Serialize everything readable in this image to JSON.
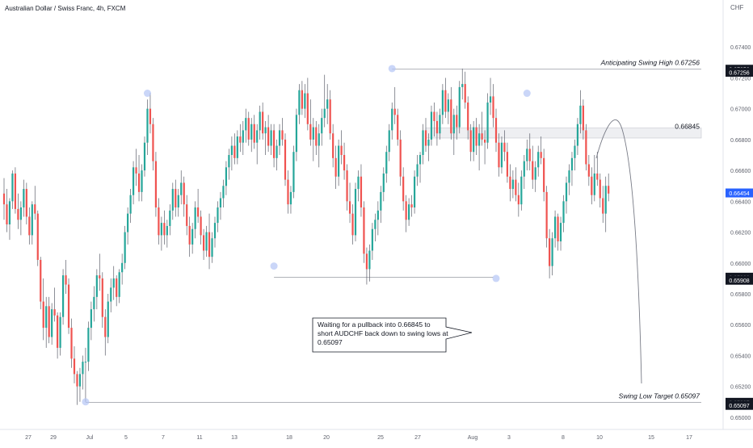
{
  "header": {
    "title": "Australian Dollar / Swiss Franc, 4h, FXCM"
  },
  "chart_data": {
    "type": "candlestick",
    "title": "Australian Dollar / Swiss Franc, 4h, FXCM",
    "currency_label": "CHF",
    "ylim": [
      0.6501,
      0.676
    ],
    "y_ticks": [
      "0.67400",
      "0.67200",
      "0.67000",
      "0.66800",
      "0.66600",
      "0.66400",
      "0.66200",
      "0.66000",
      "0.65800",
      "0.65600",
      "0.65400",
      "0.65200",
      "0.65000"
    ],
    "x_ticks": [
      "27",
      "29",
      "Jul",
      "5",
      "7",
      "11",
      "13",
      "18",
      "20",
      "25",
      "27",
      "Aug",
      "3",
      "8",
      "10",
      "15",
      "17"
    ],
    "price_badges": [
      {
        "label": "0.67256",
        "value": 0.67256,
        "color": "#131722"
      },
      {
        "label": "0.67256",
        "value": 0.67236,
        "color": "#131722"
      },
      {
        "label": "0.66454",
        "value": 0.66454,
        "color": "#2962ff"
      },
      {
        "label": "0.65908",
        "value": 0.65908,
        "color": "#131722"
      },
      {
        "label": "0.65908",
        "value": 0.65888,
        "color": "#131722"
      },
      {
        "label": "0.65097",
        "value": 0.65097,
        "color": "#131722"
      },
      {
        "label": "0.65097",
        "value": 0.65077,
        "color": "#131722"
      }
    ],
    "colors": {
      "up": "#26a69a",
      "down": "#ef5350",
      "wick": "#5d606b",
      "swing": "#b3c5f5"
    },
    "candles": [
      [
        0.6645,
        0.6655,
        0.6628,
        0.6638
      ],
      [
        0.6638,
        0.6648,
        0.662,
        0.6625
      ],
      [
        0.6625,
        0.6642,
        0.6615,
        0.664
      ],
      [
        0.664,
        0.666,
        0.6635,
        0.6658
      ],
      [
        0.6658,
        0.6662,
        0.6632,
        0.6635
      ],
      [
        0.6635,
        0.6645,
        0.6622,
        0.6628
      ],
      [
        0.6628,
        0.664,
        0.6618,
        0.6636
      ],
      [
        0.6636,
        0.6654,
        0.663,
        0.6648
      ],
      [
        0.6648,
        0.6652,
        0.6625,
        0.663
      ],
      [
        0.663,
        0.6636,
        0.6612,
        0.6618
      ],
      [
        0.6618,
        0.664,
        0.6612,
        0.6638
      ],
      [
        0.6638,
        0.665,
        0.6628,
        0.6632
      ],
      [
        0.6632,
        0.6634,
        0.6598,
        0.6602
      ],
      [
        0.6602,
        0.6604,
        0.657,
        0.6575
      ],
      [
        0.6575,
        0.659,
        0.655,
        0.6558
      ],
      [
        0.6558,
        0.6578,
        0.6545,
        0.6572
      ],
      [
        0.6572,
        0.6578,
        0.6548,
        0.6552
      ],
      [
        0.6552,
        0.6574,
        0.6547,
        0.657
      ],
      [
        0.657,
        0.6584,
        0.6562,
        0.6566
      ],
      [
        0.6566,
        0.6568,
        0.6538,
        0.6545
      ],
      [
        0.6545,
        0.6568,
        0.654,
        0.6565
      ],
      [
        0.6565,
        0.6596,
        0.656,
        0.6592
      ],
      [
        0.6592,
        0.6602,
        0.658,
        0.6586
      ],
      [
        0.6586,
        0.659,
        0.6554,
        0.6558
      ],
      [
        0.6558,
        0.6564,
        0.6532,
        0.6538
      ],
      [
        0.6538,
        0.6546,
        0.6522,
        0.6528
      ],
      [
        0.6528,
        0.653,
        0.6508,
        0.652
      ],
      [
        0.652,
        0.6532,
        0.651,
        0.6528
      ],
      [
        0.6528,
        0.654,
        0.6518,
        0.6536
      ],
      [
        0.6536,
        0.6545,
        0.651,
        0.6536
      ],
      [
        0.6536,
        0.6562,
        0.653,
        0.6558
      ],
      [
        0.6558,
        0.6575,
        0.655,
        0.657
      ],
      [
        0.657,
        0.6585,
        0.6562,
        0.6578
      ],
      [
        0.6578,
        0.6596,
        0.657,
        0.6592
      ],
      [
        0.6592,
        0.6606,
        0.6582,
        0.659
      ],
      [
        0.659,
        0.6594,
        0.6558,
        0.6565
      ],
      [
        0.6565,
        0.657,
        0.654,
        0.6552
      ],
      [
        0.6552,
        0.658,
        0.6548,
        0.6575
      ],
      [
        0.6575,
        0.659,
        0.6568,
        0.6584
      ],
      [
        0.6584,
        0.6598,
        0.6576,
        0.659
      ],
      [
        0.659,
        0.6592,
        0.6572,
        0.6578
      ],
      [
        0.6578,
        0.6596,
        0.6574,
        0.6594
      ],
      [
        0.6594,
        0.6606,
        0.6586,
        0.66
      ],
      [
        0.66,
        0.6624,
        0.6596,
        0.662
      ],
      [
        0.662,
        0.6636,
        0.6612,
        0.6632
      ],
      [
        0.6632,
        0.6648,
        0.6626,
        0.6644
      ],
      [
        0.6644,
        0.6666,
        0.6638,
        0.6662
      ],
      [
        0.6662,
        0.6674,
        0.665,
        0.6658
      ],
      [
        0.6658,
        0.667,
        0.664,
        0.6646
      ],
      [
        0.6646,
        0.6664,
        0.664,
        0.666
      ],
      [
        0.666,
        0.6682,
        0.6656,
        0.6678
      ],
      [
        0.6678,
        0.6706,
        0.667,
        0.67
      ],
      [
        0.67,
        0.671,
        0.6684,
        0.669
      ],
      [
        0.669,
        0.6694,
        0.666,
        0.6666
      ],
      [
        0.6666,
        0.6672,
        0.663,
        0.6636
      ],
      [
        0.6636,
        0.6642,
        0.6612,
        0.6618
      ],
      [
        0.6618,
        0.663,
        0.6608,
        0.6626
      ],
      [
        0.6626,
        0.6634,
        0.6612,
        0.6618
      ],
      [
        0.6618,
        0.6628,
        0.661,
        0.6624
      ],
      [
        0.6624,
        0.6638,
        0.6618,
        0.6634
      ],
      [
        0.6634,
        0.6652,
        0.6628,
        0.6648
      ],
      [
        0.6648,
        0.6654,
        0.663,
        0.6636
      ],
      [
        0.6636,
        0.6648,
        0.663,
        0.6644
      ],
      [
        0.6644,
        0.666,
        0.6638,
        0.6652
      ],
      [
        0.6652,
        0.6656,
        0.663,
        0.6638
      ],
      [
        0.6638,
        0.6644,
        0.6618,
        0.6624
      ],
      [
        0.6624,
        0.663,
        0.6604,
        0.6612
      ],
      [
        0.6612,
        0.6626,
        0.6606,
        0.6622
      ],
      [
        0.6622,
        0.664,
        0.6616,
        0.6636
      ],
      [
        0.6636,
        0.6648,
        0.6626,
        0.663
      ],
      [
        0.663,
        0.6634,
        0.6612,
        0.6618
      ],
      [
        0.6618,
        0.6622,
        0.6602,
        0.6608
      ],
      [
        0.6608,
        0.6624,
        0.6604,
        0.662
      ],
      [
        0.662,
        0.6632,
        0.6596,
        0.6604
      ],
      [
        0.6604,
        0.662,
        0.66,
        0.6616
      ],
      [
        0.6616,
        0.663,
        0.661,
        0.6626
      ],
      [
        0.6626,
        0.664,
        0.662,
        0.6636
      ],
      [
        0.6636,
        0.6646,
        0.6628,
        0.6642
      ],
      [
        0.6642,
        0.6654,
        0.6636,
        0.665
      ],
      [
        0.665,
        0.6666,
        0.6644,
        0.6662
      ],
      [
        0.6662,
        0.6674,
        0.6654,
        0.667
      ],
      [
        0.667,
        0.6682,
        0.666,
        0.6676
      ],
      [
        0.6676,
        0.6684,
        0.6664,
        0.6668
      ],
      [
        0.6668,
        0.6686,
        0.6664,
        0.6682
      ],
      [
        0.6682,
        0.669,
        0.6672,
        0.6678
      ],
      [
        0.6678,
        0.6692,
        0.667,
        0.6686
      ],
      [
        0.6686,
        0.67,
        0.6678,
        0.6694
      ],
      [
        0.6694,
        0.6698,
        0.6676,
        0.668
      ],
      [
        0.668,
        0.6694,
        0.6672,
        0.669
      ],
      [
        0.669,
        0.6696,
        0.6674,
        0.6678
      ],
      [
        0.6678,
        0.669,
        0.6664,
        0.6686
      ],
      [
        0.6686,
        0.6702,
        0.668,
        0.6698
      ],
      [
        0.6698,
        0.6704,
        0.668,
        0.6684
      ],
      [
        0.6684,
        0.6692,
        0.667,
        0.6688
      ],
      [
        0.6688,
        0.6696,
        0.6672,
        0.6676
      ],
      [
        0.6676,
        0.669,
        0.667,
        0.6686
      ],
      [
        0.6686,
        0.669,
        0.6662,
        0.6668
      ],
      [
        0.6668,
        0.668,
        0.666,
        0.6676
      ],
      [
        0.6676,
        0.669,
        0.667,
        0.6686
      ],
      [
        0.6686,
        0.6694,
        0.6676,
        0.668
      ],
      [
        0.668,
        0.6684,
        0.665,
        0.6654
      ],
      [
        0.6654,
        0.666,
        0.6632,
        0.6638
      ],
      [
        0.6638,
        0.665,
        0.6632,
        0.6646
      ],
      [
        0.6646,
        0.6676,
        0.6642,
        0.6672
      ],
      [
        0.6672,
        0.67,
        0.6666,
        0.6696
      ],
      [
        0.6696,
        0.6716,
        0.669,
        0.6712
      ],
      [
        0.6712,
        0.6718,
        0.6696,
        0.67
      ],
      [
        0.67,
        0.6716,
        0.6694,
        0.671
      ],
      [
        0.671,
        0.672,
        0.6686,
        0.669
      ],
      [
        0.669,
        0.6706,
        0.6676,
        0.668
      ],
      [
        0.668,
        0.6694,
        0.6666,
        0.6688
      ],
      [
        0.6688,
        0.6692,
        0.667,
        0.6676
      ],
      [
        0.6676,
        0.669,
        0.6662,
        0.6684
      ],
      [
        0.6684,
        0.67,
        0.6676,
        0.6694
      ],
      [
        0.6694,
        0.6722,
        0.6688,
        0.67
      ],
      [
        0.67,
        0.6716,
        0.669,
        0.6706
      ],
      [
        0.6706,
        0.6712,
        0.668,
        0.6684
      ],
      [
        0.6684,
        0.669,
        0.6662,
        0.6668
      ],
      [
        0.6668,
        0.6676,
        0.6648,
        0.6656
      ],
      [
        0.6656,
        0.668,
        0.665,
        0.6676
      ],
      [
        0.6676,
        0.6686,
        0.6664,
        0.667
      ],
      [
        0.667,
        0.6678,
        0.6654,
        0.666
      ],
      [
        0.666,
        0.6664,
        0.6634,
        0.664
      ],
      [
        0.664,
        0.6652,
        0.6626,
        0.6632
      ],
      [
        0.6632,
        0.6638,
        0.6612,
        0.6618
      ],
      [
        0.6618,
        0.6652,
        0.6614,
        0.6648
      ],
      [
        0.6648,
        0.666,
        0.664,
        0.6656
      ],
      [
        0.6656,
        0.6664,
        0.663,
        0.6636
      ],
      [
        0.6636,
        0.664,
        0.66,
        0.6606
      ],
      [
        0.6606,
        0.661,
        0.6586,
        0.6596
      ],
      [
        0.6596,
        0.6612,
        0.6588,
        0.6608
      ],
      [
        0.6608,
        0.6626,
        0.6602,
        0.6622
      ],
      [
        0.6622,
        0.6632,
        0.6614,
        0.6628
      ],
      [
        0.6628,
        0.664,
        0.6618,
        0.6634
      ],
      [
        0.6634,
        0.665,
        0.6626,
        0.6646
      ],
      [
        0.6646,
        0.6662,
        0.664,
        0.6658
      ],
      [
        0.6658,
        0.6676,
        0.6652,
        0.6672
      ],
      [
        0.6672,
        0.669,
        0.6666,
        0.6686
      ],
      [
        0.6686,
        0.6704,
        0.668,
        0.67
      ],
      [
        0.67,
        0.6714,
        0.669,
        0.6696
      ],
      [
        0.6696,
        0.67,
        0.6676,
        0.668
      ],
      [
        0.668,
        0.6686,
        0.665,
        0.6656
      ],
      [
        0.6656,
        0.6662,
        0.6634,
        0.664
      ],
      [
        0.664,
        0.6644,
        0.662,
        0.6628
      ],
      [
        0.6628,
        0.6642,
        0.6624,
        0.6638
      ],
      [
        0.6638,
        0.6644,
        0.663,
        0.6636
      ],
      [
        0.6636,
        0.666,
        0.6632,
        0.6656
      ],
      [
        0.6656,
        0.667,
        0.665,
        0.6664
      ],
      [
        0.6664,
        0.6672,
        0.6652,
        0.667
      ],
      [
        0.667,
        0.669,
        0.6664,
        0.6686
      ],
      [
        0.6686,
        0.6694,
        0.6672,
        0.6676
      ],
      [
        0.6676,
        0.6684,
        0.6666,
        0.668
      ],
      [
        0.668,
        0.6702,
        0.6676,
        0.6698
      ],
      [
        0.6698,
        0.6704,
        0.6682,
        0.6692
      ],
      [
        0.6692,
        0.6698,
        0.6676,
        0.6684
      ],
      [
        0.6684,
        0.67,
        0.668,
        0.6696
      ],
      [
        0.6696,
        0.6716,
        0.669,
        0.6712
      ],
      [
        0.6712,
        0.672,
        0.6694,
        0.6698
      ],
      [
        0.6698,
        0.671,
        0.669,
        0.6706
      ],
      [
        0.6706,
        0.6714,
        0.668,
        0.6684
      ],
      [
        0.6684,
        0.67,
        0.667,
        0.6696
      ],
      [
        0.6696,
        0.6702,
        0.668,
        0.6688
      ],
      [
        0.6688,
        0.6718,
        0.6684,
        0.6714
      ],
      [
        0.6714,
        0.6726,
        0.6706,
        0.6716
      ],
      [
        0.6716,
        0.6724,
        0.67,
        0.6704
      ],
      [
        0.6704,
        0.6708,
        0.668,
        0.6686
      ],
      [
        0.6686,
        0.669,
        0.6666,
        0.6672
      ],
      [
        0.6672,
        0.6692,
        0.6666,
        0.6688
      ],
      [
        0.6688,
        0.6694,
        0.667,
        0.6676
      ],
      [
        0.6676,
        0.669,
        0.666,
        0.6684
      ],
      [
        0.6684,
        0.6698,
        0.6676,
        0.668
      ],
      [
        0.668,
        0.6686,
        0.6664,
        0.6678
      ],
      [
        0.6678,
        0.671,
        0.6674,
        0.6704
      ],
      [
        0.6704,
        0.672,
        0.6696,
        0.6708
      ],
      [
        0.6708,
        0.6716,
        0.6688,
        0.6694
      ],
      [
        0.6694,
        0.67,
        0.6672,
        0.6678
      ],
      [
        0.6678,
        0.6684,
        0.6656,
        0.6662
      ],
      [
        0.6662,
        0.6682,
        0.6658,
        0.6678
      ],
      [
        0.6678,
        0.6686,
        0.6666,
        0.6672
      ],
      [
        0.6672,
        0.6678,
        0.6652,
        0.6656
      ],
      [
        0.6656,
        0.6664,
        0.664,
        0.6648
      ],
      [
        0.6648,
        0.666,
        0.6642,
        0.6654
      ],
      [
        0.6654,
        0.6662,
        0.664,
        0.6644
      ],
      [
        0.6644,
        0.6652,
        0.663,
        0.6638
      ],
      [
        0.6638,
        0.666,
        0.6634,
        0.6656
      ],
      [
        0.6656,
        0.667,
        0.6648,
        0.6666
      ],
      [
        0.6666,
        0.668,
        0.666,
        0.6674
      ],
      [
        0.6674,
        0.6684,
        0.666,
        0.6666
      ],
      [
        0.6666,
        0.6676,
        0.6648,
        0.6654
      ],
      [
        0.6654,
        0.6666,
        0.6646,
        0.6662
      ],
      [
        0.6662,
        0.6676,
        0.6656,
        0.6672
      ],
      [
        0.6672,
        0.6682,
        0.6664,
        0.6668
      ],
      [
        0.6668,
        0.6674,
        0.664,
        0.6646
      ],
      [
        0.6646,
        0.665,
        0.661,
        0.6616
      ],
      [
        0.6616,
        0.6622,
        0.659,
        0.6598
      ],
      [
        0.6598,
        0.662,
        0.6592,
        0.6616
      ],
      [
        0.6616,
        0.6634,
        0.661,
        0.663
      ],
      [
        0.663,
        0.6632,
        0.6608,
        0.6614
      ],
      [
        0.6614,
        0.663,
        0.6608,
        0.6626
      ],
      [
        0.6626,
        0.6644,
        0.662,
        0.664
      ],
      [
        0.664,
        0.6656,
        0.6632,
        0.6652
      ],
      [
        0.6652,
        0.6664,
        0.6644,
        0.666
      ],
      [
        0.666,
        0.6672,
        0.665,
        0.6668
      ],
      [
        0.6668,
        0.668,
        0.666,
        0.6676
      ],
      [
        0.6676,
        0.6694,
        0.667,
        0.669
      ],
      [
        0.669,
        0.6712,
        0.6684,
        0.6702
      ],
      [
        0.6702,
        0.6706,
        0.668,
        0.6686
      ],
      [
        0.6686,
        0.669,
        0.666,
        0.6664
      ],
      [
        0.6664,
        0.667,
        0.665,
        0.6656
      ],
      [
        0.6656,
        0.6662,
        0.6638,
        0.6644
      ],
      [
        0.6644,
        0.667,
        0.664,
        0.6658
      ],
      [
        0.6658,
        0.6672,
        0.665,
        0.6654
      ],
      [
        0.6654,
        0.6658,
        0.6636,
        0.6642
      ],
      [
        0.6642,
        0.665,
        0.6626,
        0.6632
      ],
      [
        0.6632,
        0.6656,
        0.662,
        0.665
      ],
      [
        0.665,
        0.6658,
        0.664,
        0.6645
      ]
    ],
    "swing_points": [
      {
        "index": 29,
        "value": 0.651
      },
      {
        "index": 51,
        "value": 0.671
      },
      {
        "index": 96,
        "value": 0.6598
      },
      {
        "index": 138,
        "value": 0.6726
      },
      {
        "index": 175,
        "value": 0.659
      },
      {
        "index": 186,
        "value": 0.671
      }
    ],
    "levels": [
      {
        "value": 0.67256,
        "label": "Anticipating Swing High 0.67256",
        "style": "line",
        "from_index": 138
      },
      {
        "value": 0.66845,
        "label": "0.66845",
        "style": "zone",
        "zone_low": 0.6681,
        "zone_high": 0.66875,
        "from_index": 150
      },
      {
        "value": 0.65908,
        "label": "",
        "style": "line",
        "from_index": 96,
        "to_index": 174
      },
      {
        "value": 0.65097,
        "label": "Swing Low Target 0.65097",
        "style": "line",
        "from_index": 29
      }
    ],
    "annotation": {
      "text_lines": [
        "Waiting for a pullback into 0.66845 to",
        "short AUDCHF back down to swing lows at",
        "0.65097"
      ]
    },
    "grid": false,
    "legend": "none"
  }
}
